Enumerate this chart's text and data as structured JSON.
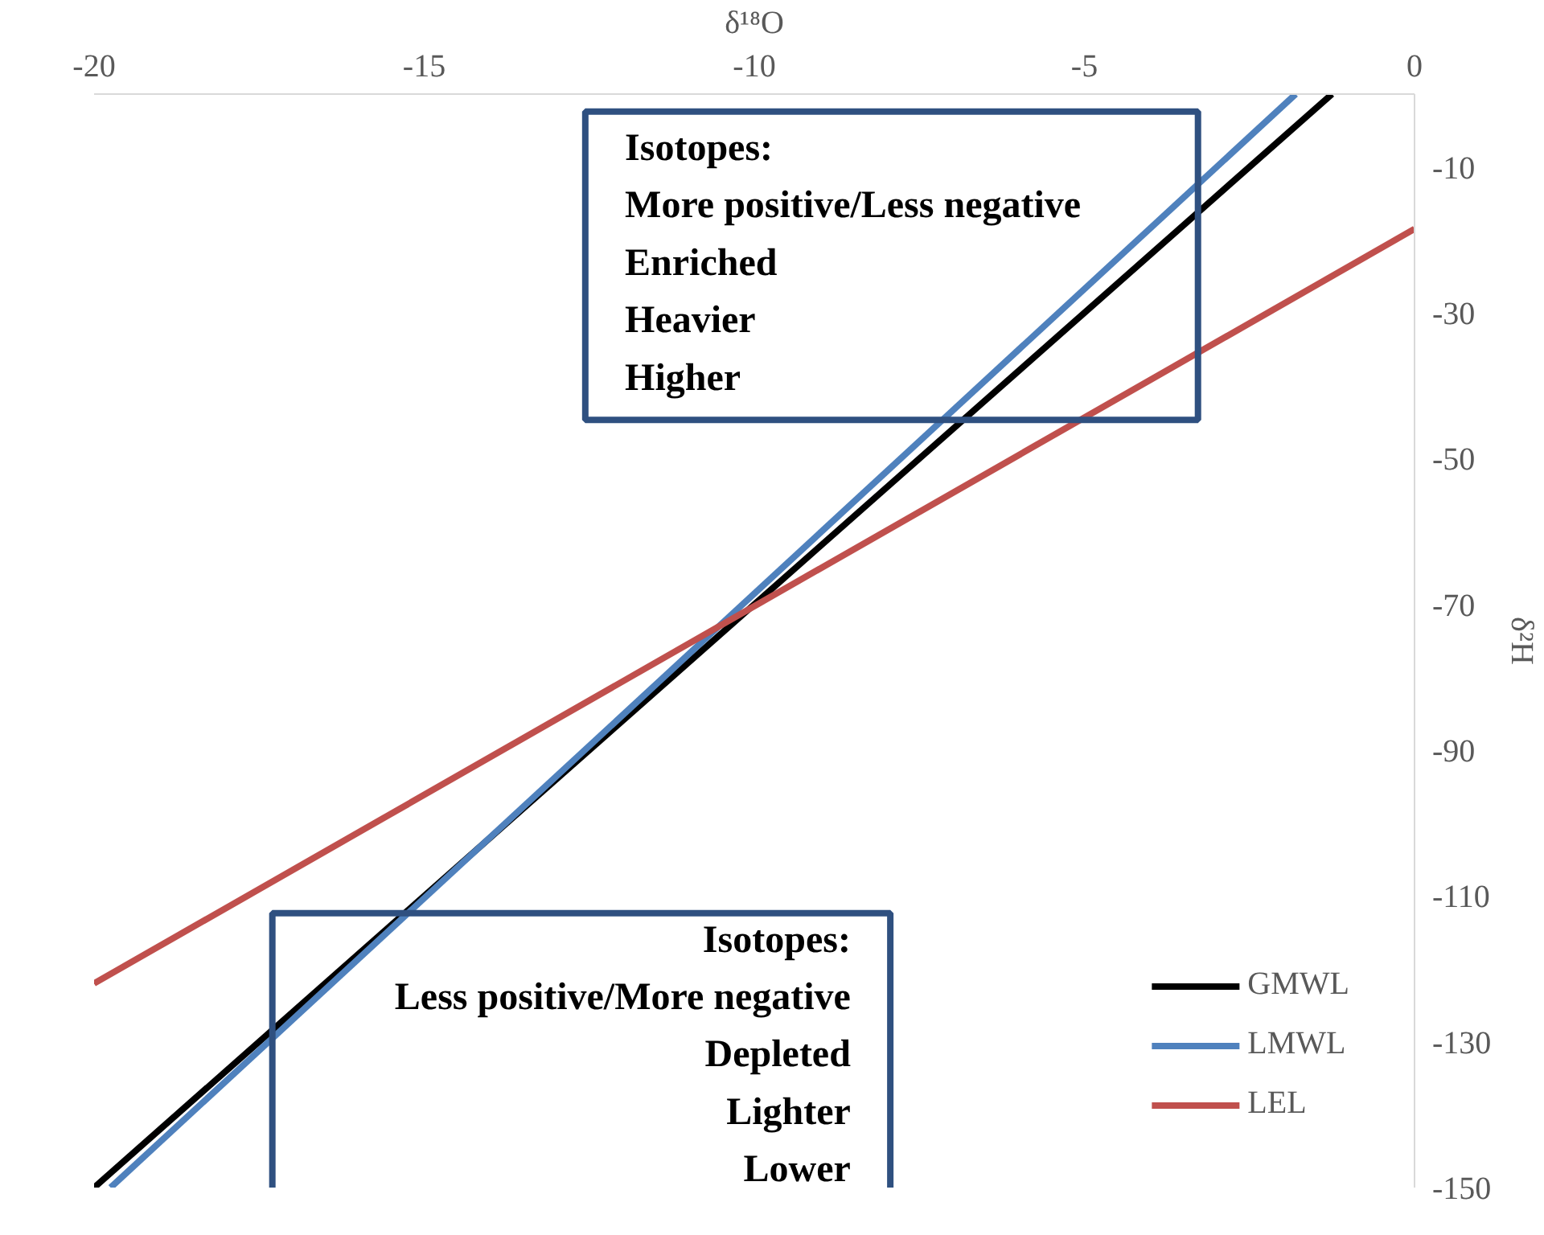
{
  "chart_data": {
    "type": "line",
    "xlabel": "δ¹⁸O",
    "ylabel": "δ²H",
    "xlim": [
      -20,
      0
    ],
    "xticks": [
      -20,
      -15,
      -10,
      -5,
      0
    ],
    "ylim": [
      -150,
      0
    ],
    "yticks": [
      -150,
      -130,
      -110,
      -90,
      -70,
      -50,
      -30,
      -10
    ],
    "series": [
      {
        "name": "GMWL",
        "color": "#000000",
        "x": [
          -20,
          -1.25
        ],
        "values": [
          -150,
          0
        ]
      },
      {
        "name": "LMWL",
        "color": "#4f81bd",
        "x": [
          -19.75,
          -1.8
        ],
        "values": [
          -150,
          0
        ]
      },
      {
        "name": "LEL",
        "color": "#c0504d",
        "x": [
          -20,
          0
        ],
        "values": [
          -122,
          -18.5
        ]
      }
    ],
    "grid": false,
    "legend": "bottom right",
    "marker": "none",
    "line_style": "solid",
    "annotations": [
      "Isotopes:\nMore positive/Less negative\nEnriched\nHeavier\nHigher",
      "Isotopes:\nLess positive/More negative\nDepleted\nLighter\nLower"
    ]
  }
}
